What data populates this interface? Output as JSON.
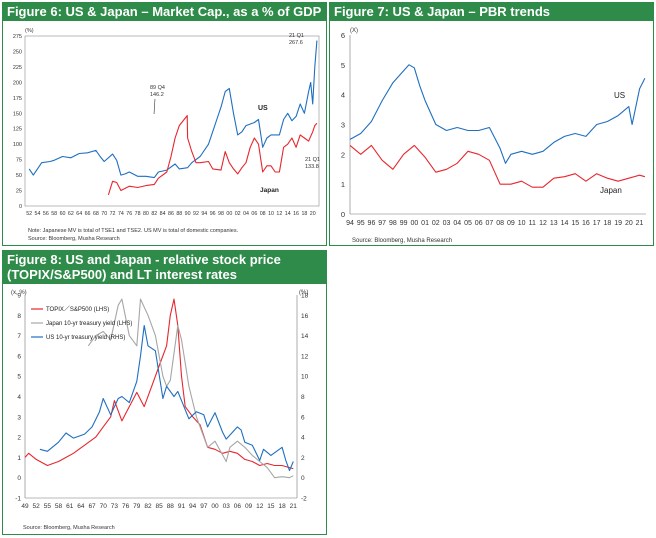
{
  "colors": {
    "header_bg": "#2e8b4a",
    "us": "#1f6fc1",
    "japan": "#e8262d",
    "gray": "#a6a6a6"
  },
  "fig6": {
    "title": "Figure 6: US & Japan – Market Cap., as a % of GDP",
    "unit": "(%)",
    "note": "Note: Japanese MV is total of TSE1 and TSE2. US MV is total of domestic companies.",
    "source": "Source: Bloomberg, Musha Research",
    "annotations": {
      "peak_label": "89 Q4",
      "peak_value": "146.2",
      "us_latest_label": "21 Q1",
      "us_latest_value": "267.6",
      "jp_latest_label": "21 Q1",
      "jp_latest_value": "133.8",
      "us_label": "US",
      "jp_label": "Japan"
    }
  },
  "fig7": {
    "title": "Figure 7: US & Japan – PBR trends",
    "unit": "(X)",
    "source": "Source: Bloomberg, Musha Research",
    "us_label": "US",
    "jp_label": "Japan"
  },
  "fig8": {
    "title_line1": "Figure 8: US and Japan - relative stock price",
    "title_line2": "(TOPIX/S&P500) and LT interest rates",
    "unit_left": "(x, %)",
    "unit_right": "(%)",
    "legend": [
      "TOPIX／S&P500  (LHS)",
      "Japan 10-yr treasury yield (LHS)",
      "US 10-yr treasury yield (RHS)"
    ],
    "source": "Source: Bloomberg, Musha Research"
  },
  "chart_data": [
    {
      "id": "fig6",
      "type": "line",
      "title": "Figure 6: US & Japan – Market Cap., as a % of GDP",
      "ylabel": "(%)",
      "ylim": [
        0,
        275
      ],
      "yticks": [
        0,
        25,
        50,
        75,
        100,
        125,
        150,
        175,
        200,
        225,
        250,
        275
      ],
      "xticks": [
        "52",
        "54",
        "56",
        "58",
        "60",
        "62",
        "64",
        "66",
        "68",
        "70",
        "72",
        "74",
        "76",
        "78",
        "80",
        "82",
        "84",
        "86",
        "88",
        "90",
        "92",
        "94",
        "96",
        "98",
        "00",
        "02",
        "04",
        "06",
        "08",
        "10",
        "12",
        "14",
        "16",
        "18",
        "20"
      ],
      "series": [
        {
          "name": "US",
          "color": "#1f6fc1",
          "x": [
            1952,
            1953,
            1955,
            1957,
            1958,
            1960,
            1962,
            1964,
            1966,
            1968,
            1969,
            1970,
            1972,
            1973,
            1974,
            1975,
            1976,
            1978,
            1980,
            1982,
            1983,
            1985,
            1987,
            1988,
            1990,
            1991,
            1993,
            1995,
            1997,
            1998,
            1999,
            2000,
            2001,
            2002,
            2003,
            2004,
            2006,
            2007,
            2008,
            2009,
            2010,
            2012,
            2013,
            2014,
            2015,
            2016,
            2017,
            2018,
            2019,
            2019.5,
            2020,
            2020.5,
            2021
          ],
          "y": [
            60,
            50,
            70,
            72,
            74,
            80,
            78,
            85,
            86,
            90,
            80,
            72,
            84,
            74,
            50,
            52,
            55,
            48,
            48,
            46,
            55,
            58,
            68,
            60,
            62,
            70,
            80,
            100,
            140,
            160,
            185,
            190,
            150,
            115,
            120,
            130,
            135,
            140,
            95,
            110,
            115,
            115,
            140,
            150,
            138,
            145,
            165,
            150,
            185,
            200,
            165,
            225,
            267.6
          ]
        },
        {
          "name": "Japan",
          "color": "#e8262d",
          "x": [
            1971,
            1972,
            1973,
            1974,
            1976,
            1978,
            1980,
            1982,
            1983,
            1985,
            1986,
            1987,
            1988,
            1989.9,
            1990,
            1991,
            1992,
            1993,
            1995,
            1996,
            1998,
            1999,
            2000,
            2001,
            2002,
            2003,
            2004,
            2005,
            2006,
            2007,
            2008,
            2009,
            2010,
            2011,
            2012,
            2013,
            2014,
            2015,
            2016,
            2017,
            2018,
            2019,
            2020,
            2020.5,
            2021
          ],
          "y": [
            18,
            40,
            38,
            25,
            32,
            30,
            33,
            35,
            45,
            55,
            80,
            110,
            130,
            146.2,
            110,
            88,
            70,
            70,
            72,
            60,
            58,
            88,
            70,
            60,
            52,
            62,
            70,
            95,
            110,
            100,
            55,
            65,
            65,
            55,
            55,
            95,
            100,
            110,
            95,
            115,
            110,
            105,
            120,
            130,
            133.8
          ]
        }
      ]
    },
    {
      "id": "fig7",
      "type": "line",
      "title": "Figure 7: US & Japan – PBR trends",
      "ylabel": "(X)",
      "ylim": [
        0,
        6
      ],
      "yticks": [
        0,
        1,
        2,
        3,
        4,
        5,
        6
      ],
      "xticks": [
        "94",
        "95",
        "96",
        "97",
        "98",
        "99",
        "00",
        "01",
        "02",
        "03",
        "04",
        "05",
        "06",
        "07",
        "08",
        "09",
        "10",
        "11",
        "12",
        "13",
        "14",
        "15",
        "16",
        "17",
        "18",
        "19",
        "20",
        "21"
      ],
      "series": [
        {
          "name": "US",
          "color": "#1f6fc1",
          "x": [
            1994,
            1995,
            1996,
            1997,
            1998,
            1999,
            1999.5,
            2000,
            2000.5,
            2001,
            2002,
            2003,
            2004,
            2005,
            2006,
            2007,
            2008,
            2008.5,
            2009,
            2010,
            2011,
            2012,
            2013,
            2014,
            2015,
            2016,
            2017,
            2018,
            2019,
            2020,
            2020.3,
            2021,
            2021.5
          ],
          "y": [
            2.5,
            2.7,
            3.1,
            3.8,
            4.4,
            4.8,
            5.0,
            4.9,
            4.3,
            3.8,
            3.0,
            2.8,
            2.9,
            2.8,
            2.8,
            2.9,
            2.2,
            1.7,
            2.0,
            2.1,
            2.0,
            2.1,
            2.4,
            2.6,
            2.7,
            2.6,
            3.0,
            3.1,
            3.3,
            3.6,
            3.0,
            4.2,
            4.55
          ]
        },
        {
          "name": "Japan",
          "color": "#e8262d",
          "x": [
            1994,
            1995,
            1996,
            1997,
            1998,
            1999,
            2000,
            2001,
            2002,
            2003,
            2004,
            2005,
            2006,
            2007,
            2008,
            2009,
            2010,
            2011,
            2012,
            2013,
            2014,
            2015,
            2016,
            2017,
            2018,
            2019,
            2020,
            2021,
            2021.5
          ],
          "y": [
            2.3,
            2.0,
            2.3,
            1.8,
            1.5,
            2.0,
            2.3,
            1.9,
            1.4,
            1.5,
            1.7,
            2.1,
            2.0,
            1.8,
            1.0,
            1.0,
            1.1,
            0.9,
            0.9,
            1.2,
            1.25,
            1.35,
            1.1,
            1.35,
            1.2,
            1.1,
            1.2,
            1.3,
            1.25
          ]
        }
      ]
    },
    {
      "id": "fig8",
      "type": "line",
      "title": "Figure 8: US and Japan - relative stock price (TOPIX/S&P500) and LT interest rates",
      "ylim_left": [
        -1,
        9
      ],
      "ylim_right": [
        -2,
        18
      ],
      "yticks_left": [
        -1,
        0,
        1,
        2,
        3,
        4,
        5,
        6,
        7,
        8,
        9
      ],
      "yticks_right": [
        -2,
        0,
        2,
        4,
        6,
        8,
        10,
        12,
        14,
        16,
        18
      ],
      "xticks": [
        "49",
        "52",
        "55",
        "58",
        "61",
        "64",
        "67",
        "70",
        "73",
        "76",
        "79",
        "82",
        "85",
        "88",
        "91",
        "94",
        "97",
        "00",
        "03",
        "06",
        "09",
        "12",
        "15",
        "18",
        "21"
      ],
      "series": [
        {
          "name": "TOPIX／S&P500  (LHS)",
          "axis": "left",
          "color": "#e8262d",
          "x": [
            1949,
            1950,
            1952,
            1955,
            1958,
            1960,
            1962,
            1965,
            1968,
            1970,
            1972,
            1973,
            1975,
            1977,
            1979,
            1981,
            1983,
            1985,
            1987,
            1988,
            1989,
            1990,
            1991,
            1992,
            1994,
            1996,
            1998,
            2000,
            2002,
            2004,
            2006,
            2008,
            2010,
            2012,
            2014,
            2016,
            2018,
            2020,
            2021
          ],
          "y": [
            1.0,
            1.2,
            0.9,
            0.6,
            0.8,
            1.0,
            1.2,
            1.6,
            2.0,
            2.5,
            3.0,
            3.8,
            2.8,
            3.5,
            4.2,
            3.5,
            4.5,
            5.5,
            6.5,
            8.0,
            8.8,
            7.5,
            5.0,
            3.5,
            3.0,
            2.6,
            1.5,
            1.4,
            1.2,
            1.3,
            1.2,
            0.9,
            0.8,
            0.6,
            0.7,
            0.6,
            0.6,
            0.5,
            0.45
          ]
        },
        {
          "name": "Japan 10-yr treasury yield (LHS)",
          "axis": "left",
          "color": "#a6a6a6",
          "x": [
            1966,
            1968,
            1970,
            1972,
            1974,
            1975,
            1977,
            1979,
            1980,
            1982,
            1984,
            1986,
            1987,
            1988,
            1990,
            1991,
            1993,
            1995,
            1997,
            1998,
            2000,
            2003,
            2004,
            2006,
            2008,
            2010,
            2012,
            2014,
            2016,
            2018,
            2020,
            2021
          ],
          "y": [
            6.5,
            7.0,
            7.2,
            6.8,
            8.5,
            8.8,
            7.0,
            6.5,
            8.8,
            8.0,
            7.0,
            5.0,
            4.5,
            4.8,
            7.5,
            6.8,
            4.5,
            3.0,
            2.0,
            1.5,
            1.8,
            0.8,
            1.5,
            1.8,
            1.5,
            1.1,
            0.8,
            0.5,
            0.0,
            0.05,
            0.0,
            0.1
          ]
        },
        {
          "name": "US 10-yr treasury yield (RHS)",
          "axis": "right",
          "color": "#1f6fc1",
          "x": [
            1953,
            1955,
            1958,
            1960,
            1962,
            1965,
            1967,
            1969,
            1970,
            1972,
            1974,
            1975,
            1977,
            1979,
            1980,
            1981,
            1982,
            1984,
            1986,
            1987,
            1989,
            1990,
            1993,
            1995,
            1997,
            1998,
            2000,
            2002,
            2003,
            2006,
            2007,
            2008,
            2010,
            2012,
            2013,
            2015,
            2018,
            2019,
            2020,
            2021
          ],
          "y": [
            2.8,
            2.6,
            3.5,
            4.4,
            3.9,
            4.3,
            5.0,
            6.5,
            7.8,
            6.2,
            7.8,
            8.0,
            7.4,
            9.5,
            12.0,
            15.0,
            13.0,
            12.5,
            7.8,
            9.0,
            8.0,
            8.5,
            5.8,
            6.5,
            6.2,
            5.0,
            6.4,
            4.5,
            3.8,
            5.0,
            4.7,
            3.5,
            3.2,
            1.7,
            2.8,
            2.2,
            3.0,
            1.7,
            0.7,
            1.6
          ]
        }
      ]
    }
  ]
}
